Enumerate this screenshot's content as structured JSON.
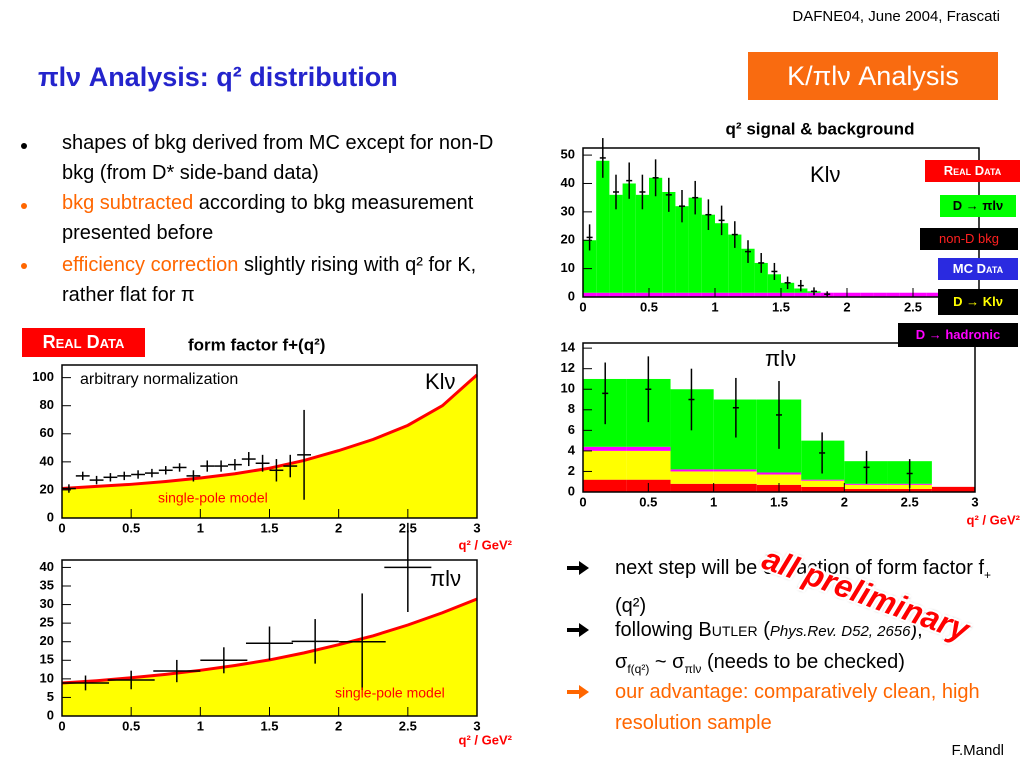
{
  "header": {
    "event": "DAFNE04, June 2004, Frascati",
    "title": "πlν Analysis: q² distribution",
    "badge": "K/πlν Analysis"
  },
  "bullets": [
    [
      "shapes of bkg derived from MC except for non-D bkg (from D* side-band data)"
    ],
    [
      "bkg subtracted",
      " according to bkg measurement presented before"
    ],
    [
      "efficiency correction",
      " slightly rising with q² for K, rather flat for π"
    ]
  ],
  "real_data_label": "Real Data",
  "legend": [
    "Real Data",
    "D → πlν",
    "non-D bkg",
    "MC Data",
    "D → Klν",
    "D → hadronic"
  ],
  "stamp": "all preliminary",
  "next_steps": [
    [
      "next step will be extraction of form factor f",
      "+",
      "(q²)"
    ],
    [
      "following ",
      "Butler",
      " (",
      "Phys.Rev. D52, 2656",
      "),",
      "σ",
      "f(q²)",
      " ~ σ",
      "πlν",
      " (needs to be checked)"
    ],
    [
      "our advantage: comparatively clean, high resolution sample"
    ]
  ],
  "footer": "F.Mandl",
  "chart_data": [
    {
      "type": "histogram",
      "title": "q² signal & background",
      "annotations": [
        "Klν"
      ],
      "bins": [
        0,
        0.1,
        0.2,
        0.3,
        0.4,
        0.5,
        0.6,
        0.7,
        0.8,
        0.9,
        1.0,
        1.1,
        1.2,
        1.3,
        1.4,
        1.5,
        1.6,
        1.7,
        1.8,
        1.9,
        2.0,
        2.1,
        2.2,
        2.3,
        2.4,
        2.5,
        2.6,
        2.7,
        2.8,
        2.9,
        3.0
      ],
      "series": [
        {
          "color": "#ff00ff",
          "values": [
            1.5,
            1.5,
            1.5,
            1.5,
            1.5,
            1.5,
            1.5,
            1.5,
            1.5,
            1.5,
            1.5,
            1.5,
            1.5,
            1.5,
            1.5,
            1.5,
            1.5,
            1.5,
            1.5,
            1.5,
            1.5,
            1.5,
            1.5,
            1.5,
            1.5,
            1.5,
            1.5,
            0,
            0,
            0
          ]
        },
        {
          "color": "#00ff00",
          "values": [
            18.5,
            46.5,
            34.5,
            38.5,
            34.5,
            40.5,
            35.5,
            30.5,
            33.5,
            27.5,
            24.5,
            20.5,
            15.5,
            10.5,
            6.5,
            3.5,
            1.5,
            0.5,
            0,
            0,
            0,
            0,
            0,
            0,
            0,
            0,
            0,
            0,
            0,
            0
          ]
        }
      ],
      "points": {
        "x": [
          0.05,
          0.15,
          0.25,
          0.35,
          0.45,
          0.55,
          0.65,
          0.75,
          0.85,
          0.95,
          1.05,
          1.15,
          1.25,
          1.35,
          1.45,
          1.55,
          1.65,
          1.75,
          1.85
        ],
        "y": [
          21,
          49,
          37,
          41,
          37,
          42,
          36,
          32,
          35,
          29,
          27,
          22,
          16,
          12,
          9,
          5,
          4,
          2,
          1
        ],
        "yerr": [
          4.6,
          7,
          6.1,
          6.4,
          6.1,
          6.5,
          6,
          5.7,
          5.9,
          5.4,
          5.2,
          4.7,
          4,
          3.5,
          3,
          2.2,
          2,
          1.4,
          1
        ]
      },
      "xlim": [
        0,
        3
      ],
      "ylim": [
        0,
        52.5
      ],
      "xticks": [
        0,
        0.5,
        1,
        1.5,
        2,
        2.5
      ],
      "yticks": [
        0,
        10,
        20,
        30,
        40,
        50
      ]
    },
    {
      "type": "histogram",
      "annotations": [
        "πlν"
      ],
      "xlabel": "q² / GeV²",
      "bins": [
        0,
        0.33,
        0.67,
        1,
        1.33,
        1.67,
        2,
        2.33,
        2.67,
        3
      ],
      "series": [
        {
          "color": "#ff0000",
          "values": [
            1.2,
            1.2,
            0.8,
            0.8,
            0.7,
            0.5,
            0.3,
            0.3,
            0.5
          ]
        },
        {
          "color": "#ffff00",
          "values": [
            2.8,
            2.8,
            1.2,
            1.2,
            1.0,
            0.6,
            0.4,
            0.4,
            0
          ]
        },
        {
          "color": "#ff00ff",
          "values": [
            0.4,
            0.4,
            0.2,
            0.2,
            0.2,
            0.1,
            0.1,
            0.1,
            0
          ]
        },
        {
          "color": "#00ff00",
          "values": [
            6.6,
            6.6,
            7.8,
            6.8,
            7.1,
            3.8,
            2.2,
            2.2,
            0
          ]
        }
      ],
      "points": {
        "x": [
          0.17,
          0.5,
          0.83,
          1.17,
          1.5,
          1.83,
          2.17,
          2.5
        ],
        "y": [
          9.6,
          10,
          9.0,
          8.2,
          7.5,
          3.8,
          2.4,
          1.8
        ],
        "yerr": [
          3,
          3.2,
          3,
          2.9,
          3.3,
          2,
          1.6,
          1.4
        ]
      },
      "xlim": [
        0,
        3
      ],
      "ylim": [
        0,
        14.5
      ],
      "xticks": [
        0,
        0.5,
        1,
        1.5,
        2,
        2.5,
        3
      ],
      "yticks": [
        0,
        2,
        4,
        6,
        8,
        10,
        12,
        14
      ]
    },
    {
      "type": "line",
      "title": "form factor f+(q²)",
      "annotations": [
        "arbitrary normalization",
        "Klν",
        "single-pole model"
      ],
      "xlabel": "q² / GeV²",
      "x": [
        0,
        0.25,
        0.5,
        0.75,
        1.0,
        1.25,
        1.5,
        1.75,
        2.0,
        2.25,
        2.5,
        2.75,
        3.0
      ],
      "series": [
        {
          "color": "#ff0000",
          "fill": "#ffff00",
          "values": [
            21,
            22.5,
            24,
            26,
            28.5,
            31.5,
            35.5,
            41,
            48,
            56,
            66,
            80,
            102
          ]
        }
      ],
      "points": {
        "x": [
          0.05,
          0.15,
          0.25,
          0.35,
          0.45,
          0.55,
          0.65,
          0.75,
          0.85,
          0.95,
          1.05,
          1.15,
          1.25,
          1.35,
          1.45,
          1.55,
          1.65,
          1.75
        ],
        "y": [
          21,
          30,
          27,
          29,
          30,
          31,
          32,
          34,
          36,
          30,
          37,
          37,
          38,
          42,
          39,
          34,
          37,
          45
        ],
        "yerr": [
          3,
          3,
          3,
          3,
          3,
          3,
          3,
          3,
          3,
          4,
          4,
          4,
          4,
          5,
          6,
          8,
          8,
          32
        ],
        "xerr": [
          0.05,
          0.05,
          0.05,
          0.05,
          0.05,
          0.05,
          0.05,
          0.05,
          0.05,
          0.05,
          0.05,
          0.05,
          0.05,
          0.05,
          0.05,
          0.05,
          0.05,
          0.05
        ]
      },
      "xlim": [
        0,
        3
      ],
      "ylim": [
        0,
        109
      ],
      "xticks": [
        0,
        0.5,
        1,
        1.5,
        2,
        2.5,
        3
      ],
      "yticks": [
        0,
        20,
        40,
        60,
        80,
        100
      ]
    },
    {
      "type": "line",
      "annotations": [
        "πlν",
        "single-pole model"
      ],
      "xlabel": "q² / GeV²",
      "x": [
        0,
        0.25,
        0.5,
        0.75,
        1.0,
        1.25,
        1.5,
        1.75,
        2.0,
        2.25,
        2.5,
        2.75,
        3.0
      ],
      "series": [
        {
          "color": "#ff0000",
          "fill": "#ffff00",
          "values": [
            8.9,
            9.5,
            10.3,
            11.2,
            12.3,
            13.6,
            15.1,
            17,
            19.2,
            21.6,
            24.5,
            27.8,
            31.5
          ]
        }
      ],
      "points": {
        "x": [
          0.17,
          0.5,
          0.83,
          1.17,
          1.5,
          1.83,
          2.17,
          2.5
        ],
        "y": [
          8.9,
          9.7,
          12.1,
          15,
          19.6,
          20.1,
          20,
          40
        ],
        "yerr": [
          2,
          2.5,
          3,
          3.5,
          4.5,
          6,
          13,
          12
        ],
        "xerr": [
          0.17,
          0.17,
          0.17,
          0.17,
          0.17,
          0.17,
          0.17,
          0.17
        ]
      },
      "xlim": [
        0,
        3
      ],
      "ylim": [
        0,
        42
      ],
      "xticks": [
        0,
        0.5,
        1,
        1.5,
        2,
        2.5,
        3
      ],
      "yticks": [
        0,
        5,
        10,
        15,
        20,
        25,
        30,
        35,
        40
      ]
    }
  ]
}
